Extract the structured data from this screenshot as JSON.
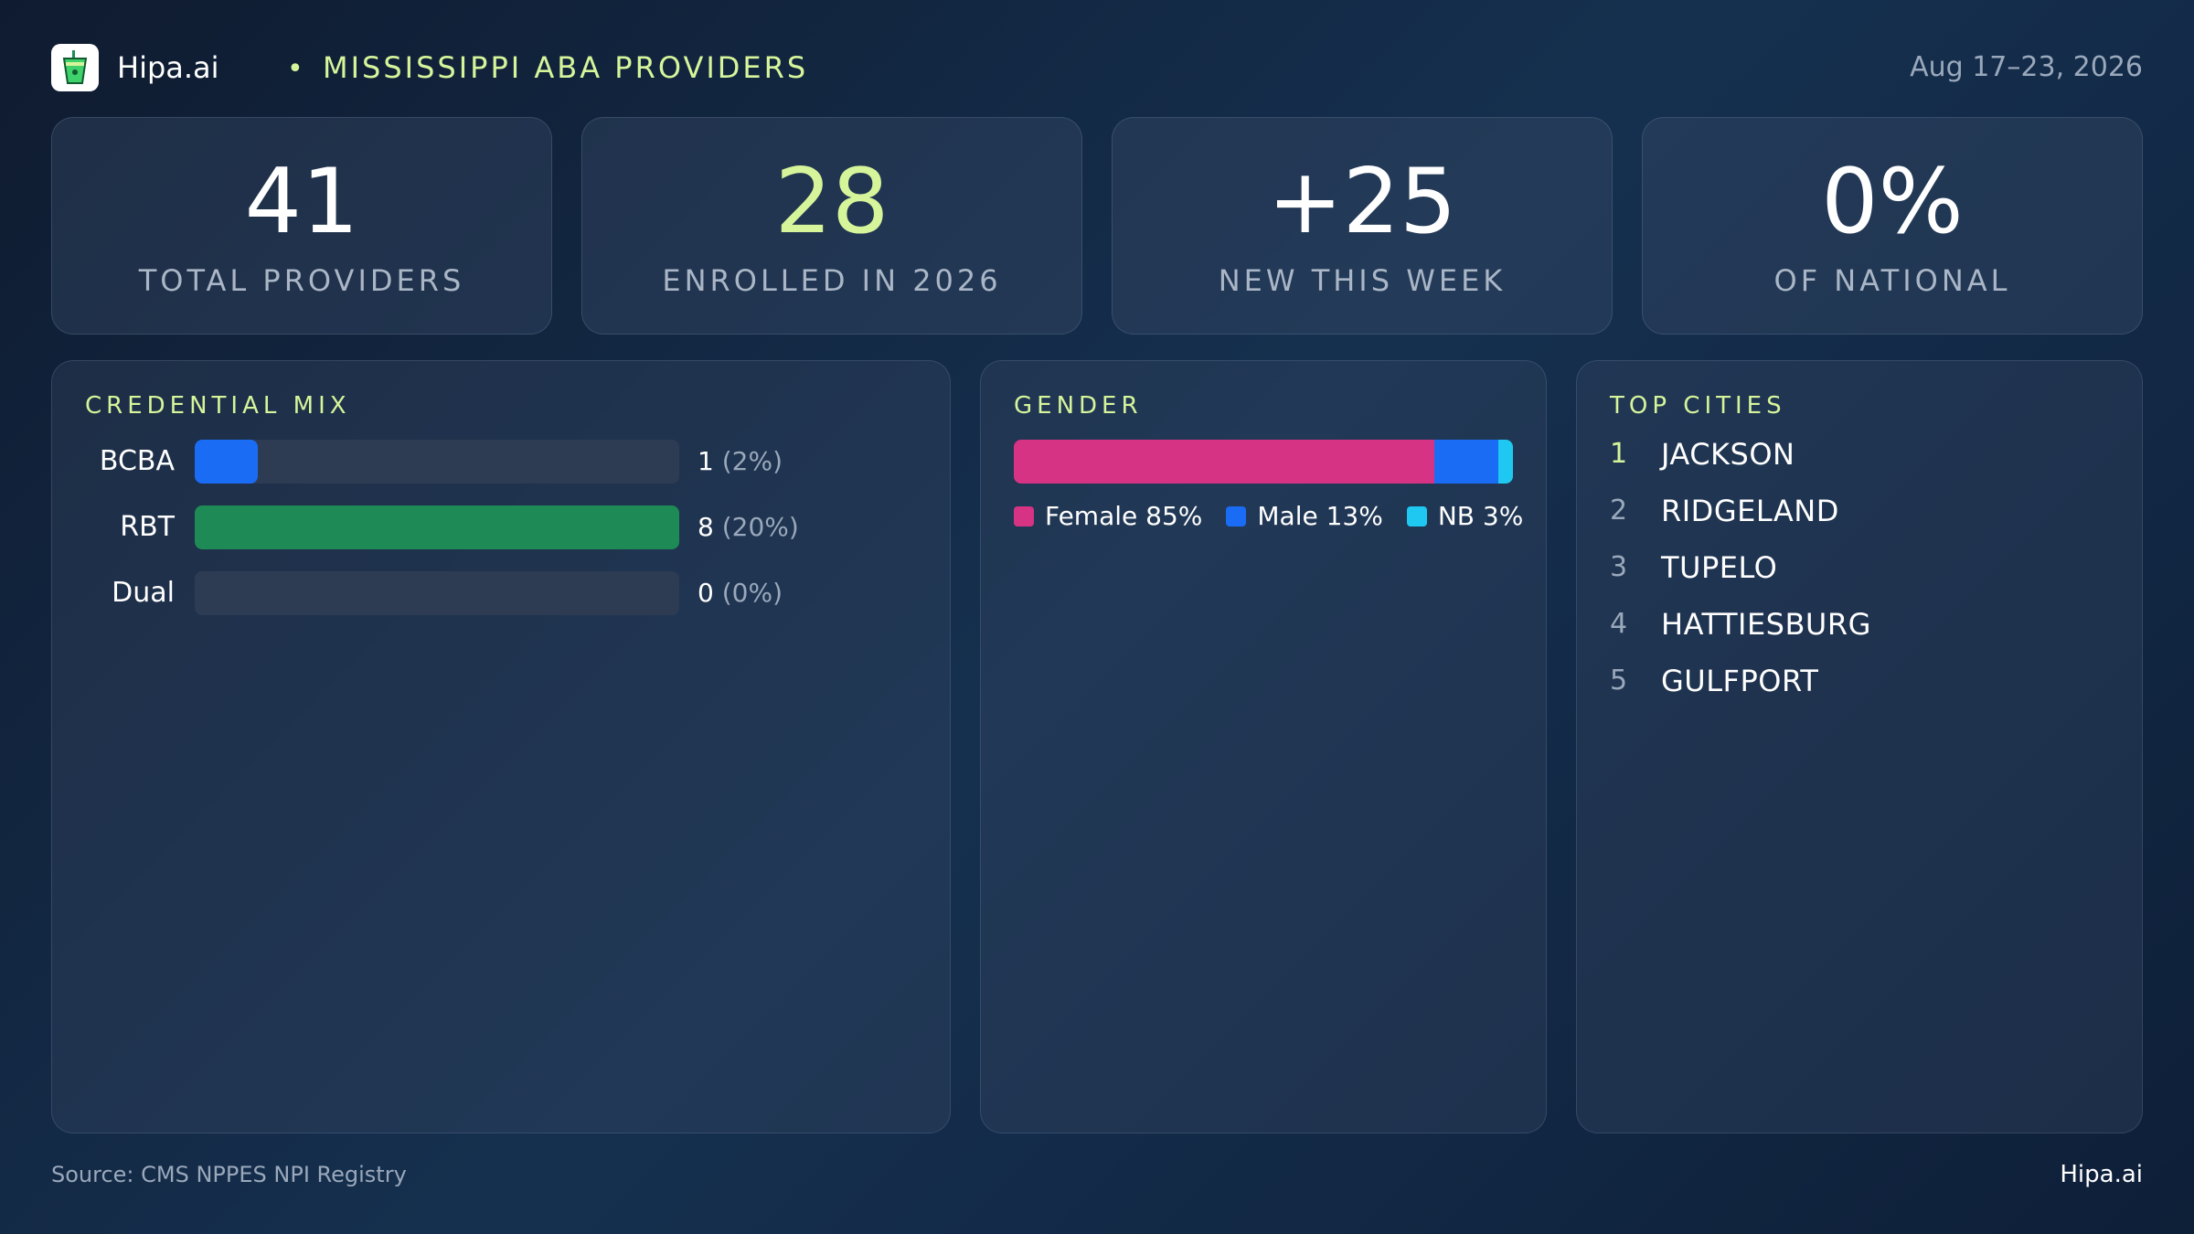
{
  "header": {
    "brand": "Hipa.ai",
    "separator": "•",
    "title": "MISSISSIPPI ABA PROVIDERS",
    "date_range": "Aug 17–23, 2026",
    "logo_icon": "cup-icon"
  },
  "kpis": [
    {
      "value": "41",
      "label": "TOTAL PROVIDERS",
      "accent": false
    },
    {
      "value": "28",
      "label": "ENROLLED IN 2026",
      "accent": true
    },
    {
      "value": "+25",
      "label": "NEW THIS WEEK",
      "accent": false
    },
    {
      "value": "0%",
      "label": "OF NATIONAL",
      "accent": false
    }
  ],
  "credential_mix": {
    "title": "CREDENTIAL MIX"
  },
  "gender": {
    "title": "GENDER"
  },
  "top_cities": {
    "title": "TOP CITIES",
    "items": [
      {
        "rank": "1",
        "name": "JACKSON"
      },
      {
        "rank": "2",
        "name": "RIDGELAND"
      },
      {
        "rank": "3",
        "name": "TUPELO"
      },
      {
        "rank": "4",
        "name": "HATTIESBURG"
      },
      {
        "rank": "5",
        "name": "GULFPORT"
      }
    ]
  },
  "footer": {
    "source": "Source: CMS NPPES NPI Registry",
    "brand": "Hipa.ai"
  },
  "colors": {
    "accent": "#d6f59b",
    "bcba": "#1a6cf5",
    "rbt": "#1e8a55",
    "dual": "#1e8a55",
    "female": "#d63384",
    "male": "#1a6cf5",
    "nb": "#1ec8f0"
  },
  "chart_data": [
    {
      "type": "bar",
      "orientation": "horizontal",
      "title": "CREDENTIAL MIX",
      "categories": [
        "BCBA",
        "RBT",
        "Dual"
      ],
      "values": [
        1,
        8,
        0
      ],
      "value_labels": [
        "1",
        "8",
        "0"
      ],
      "percent_labels": [
        "(2%)",
        "(20%)",
        "(0%)"
      ],
      "fill_fractions": [
        0.13,
        1.0,
        0.0
      ]
    },
    {
      "type": "bar",
      "orientation": "horizontal",
      "stacked": true,
      "title": "GENDER",
      "categories": [
        "Female",
        "Male",
        "NB"
      ],
      "values": [
        85,
        13,
        3
      ],
      "legend_labels": [
        "Female 85%",
        "Male 13%",
        "NB 3%"
      ],
      "legend": "bottom"
    }
  ]
}
